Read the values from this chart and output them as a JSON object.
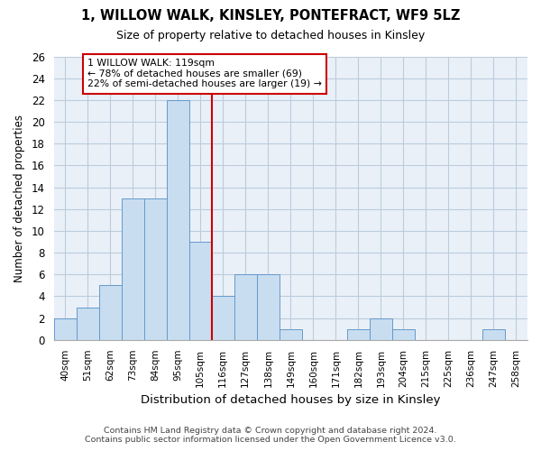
{
  "title": "1, WILLOW WALK, KINSLEY, PONTEFRACT, WF9 5LZ",
  "subtitle": "Size of property relative to detached houses in Kinsley",
  "xlabel": "Distribution of detached houses by size in Kinsley",
  "ylabel": "Number of detached properties",
  "categories": [
    "40sqm",
    "51sqm",
    "62sqm",
    "73sqm",
    "84sqm",
    "95sqm",
    "105sqm",
    "116sqm",
    "127sqm",
    "138sqm",
    "149sqm",
    "160sqm",
    "171sqm",
    "182sqm",
    "193sqm",
    "204sqm",
    "215sqm",
    "225sqm",
    "236sqm",
    "247sqm",
    "258sqm"
  ],
  "values": [
    2,
    3,
    5,
    13,
    13,
    22,
    9,
    4,
    6,
    6,
    1,
    0,
    0,
    1,
    2,
    1,
    0,
    0,
    0,
    1,
    0
  ],
  "bar_color": "#c8ddf0",
  "bar_edge_color": "#6699cc",
  "vline_x_index": 7,
  "vline_color": "#cc0000",
  "annotation_text": "1 WILLOW WALK: 119sqm\n← 78% of detached houses are smaller (69)\n22% of semi-detached houses are larger (19) →",
  "annotation_box_color": "#cc0000",
  "ylim": [
    0,
    26
  ],
  "yticks": [
    0,
    2,
    4,
    6,
    8,
    10,
    12,
    14,
    16,
    18,
    20,
    22,
    24,
    26
  ],
  "grid_color": "#bbccdd",
  "bg_color": "#eaf0f8",
  "footer_line1": "Contains HM Land Registry data © Crown copyright and database right 2024.",
  "footer_line2": "Contains public sector information licensed under the Open Government Licence v3.0."
}
